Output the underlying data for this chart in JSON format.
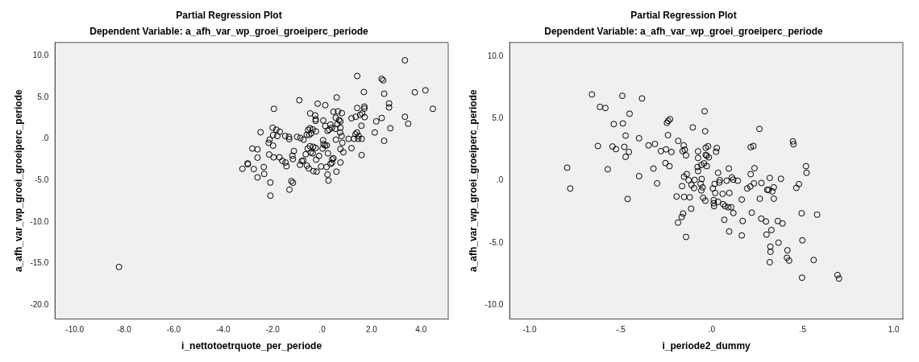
{
  "chart_data": [
    {
      "type": "scatter",
      "title": "Partial Regression Plot",
      "subtitle": "Dependent Variable: a_afh_var_wp_groei_groeiperc_periode",
      "xlabel": "i_nettotoetrquote_per_periode",
      "ylabel": "a_afh_var_wp_groei_groeiperc_periode",
      "marker": "circle",
      "color": "#000000",
      "xlim": [
        -10.8,
        5.1
      ],
      "ylim": [
        -21.7,
        11.6
      ],
      "xticks": [
        {
          "value": -10,
          "label": "-10.0"
        },
        {
          "value": -8,
          "label": "-8.0"
        },
        {
          "value": -6,
          "label": "-6.0"
        },
        {
          "value": -4,
          "label": "-4.0"
        },
        {
          "value": -2,
          "label": "-2.0"
        },
        {
          "value": 0,
          "label": ".0"
        },
        {
          "value": 2,
          "label": "2.0"
        },
        {
          "value": 4,
          "label": "4.0"
        }
      ],
      "yticks": [
        {
          "value": -20,
          "label": "-20.0"
        },
        {
          "value": -15,
          "label": "-15.0"
        },
        {
          "value": -10,
          "label": "-10.0"
        },
        {
          "value": -5,
          "label": "-5.0"
        },
        {
          "value": 0,
          "label": ".0"
        },
        {
          "value": 5,
          "label": "5.0"
        },
        {
          "value": 10,
          "label": "10.0"
        }
      ],
      "x": [
        3.35,
        1.42,
        2.41,
        2.47,
        1.69,
        3.75,
        4.18,
        2.51,
        -0.92,
        0.59,
        -0.18,
        0.13,
        2.71,
        2.71,
        1.71,
        1.71,
        1.42,
        4.48,
        -1.95,
        -0.48,
        0.46,
        0.64,
        0.8,
        -0.28,
        -0.26,
        -0.26,
        0.05,
        0.55,
        0.69,
        0.74,
        1.19,
        1.36,
        1.54,
        1.72,
        1.62,
        3.35,
        2.41,
        2.19,
        3.48,
        0.62,
        0.13,
        0.34,
        0.4,
        0.29,
        0.22,
        0.54,
        0.74,
        1.59,
        2.76,
        2.13,
        1.41,
        1.35,
        1.48,
        0.73,
        0.79,
        1.07,
        1.29,
        1.6,
        1.46,
        0.56,
        0.82,
        0.04,
        0.06,
        0.12,
        0.19,
        0.02,
        -0.56,
        -0.49,
        -0.38,
        -0.25,
        -0.52,
        -0.44,
        -0.62,
        -1.01,
        -0.88,
        -0.75,
        -1.34,
        -1.33,
        -1.49,
        -1.71,
        -1.85,
        -2.0,
        -1.81,
        -1.98,
        -2.49,
        -2.12,
        -2.16,
        -1.98,
        -2.82,
        -2.61,
        -1.14,
        -0.58,
        -0.49,
        -0.36,
        -0.26,
        -0.46,
        -0.38,
        -0.66,
        -0.12,
        0.24,
        -0.24,
        -1.2,
        -1.18,
        -2.14,
        -1.96,
        -1.72,
        -1.61,
        -1.48,
        -2.61,
        -0.82,
        -0.76,
        -0.89,
        -0.61,
        -0.54,
        -0.35,
        -0.22,
        -0.04,
        0.18,
        0.34,
        0.4,
        0.46,
        0.41,
        0.74,
        0.58,
        0.22,
        0.26,
        0.86,
        0.74,
        1.19,
        1.6,
        2.51,
        -1.44,
        -3.01,
        -3.0,
        -3.22,
        -2.76,
        -2.36,
        -2.34,
        -2.61,
        -2.09,
        -1.24,
        -1.18,
        -1.32,
        -2.09,
        -8.21
      ],
      "values": [
        9.45,
        7.56,
        7.22,
        7.04,
        5.64,
        5.6,
        5.84,
        5.43,
        4.64,
        4.98,
        4.23,
        4.05,
        4.26,
        3.78,
        3.88,
        3.64,
        3.71,
        3.61,
        3.61,
        3.06,
        3.26,
        3.3,
        3.09,
        2.82,
        2.37,
        2.16,
        2.2,
        2.54,
        2.27,
        2.1,
        2.47,
        2.65,
        2.89,
        2.61,
        3.06,
        2.65,
        2.51,
        2.1,
        1.82,
        1.79,
        1.55,
        1.72,
        1.34,
        1.1,
        0.96,
        1.2,
        1.34,
        1.58,
        1.27,
        0.76,
        0.76,
        0.55,
        0.34,
        0.76,
        0.34,
        0.0,
        0.0,
        0.0,
        0.0,
        -0.1,
        -0.48,
        -0.17,
        -0.62,
        -0.79,
        -0.79,
        -1.17,
        1.07,
        1.27,
        1.13,
        0.89,
        0.48,
        0.65,
        0.48,
        0.24,
        0.1,
        -0.1,
        0.24,
        -0.03,
        0.34,
        0.86,
        1.1,
        1.34,
        0.34,
        0.45,
        0.79,
        -0.1,
        -0.48,
        -0.82,
        -1.17,
        -1.27,
        -1.48,
        -1.17,
        -0.89,
        -0.96,
        -1.1,
        -1.65,
        -1.75,
        -1.86,
        -2.06,
        -1.75,
        -2.51,
        -2.03,
        -2.44,
        -1.89,
        -2.23,
        -2.23,
        -2.65,
        -2.85,
        -2.27,
        -2.68,
        -2.61,
        -3.13,
        -3.23,
        -3.57,
        -3.88,
        -3.95,
        -3.33,
        -3.4,
        -3.02,
        -2.89,
        -2.34,
        -2.47,
        -2.85,
        -3.95,
        -4.3,
        -5.02,
        -1.62,
        -1.24,
        -1.13,
        -1.96,
        -0.24,
        -3.3,
        -2.96,
        -3.06,
        -3.61,
        -3.64,
        -3.4,
        -4.23,
        -4.64,
        -5.26,
        -5.09,
        -5.29,
        -6.12,
        -6.84,
        -15.43
      ]
    },
    {
      "type": "scatter",
      "title": "Partial Regression Plot",
      "subtitle": "Dependent Variable: a_afh_var_wp_groei_groeiperc_periode",
      "xlabel": "i_periode2_dummy",
      "ylabel": "a_afh_var_wp_groei_groeiperc_periode",
      "marker": "circle",
      "color": "#000000",
      "xlim": [
        -1.11,
        1.05
      ],
      "ylim": [
        -11.1,
        11.1
      ],
      "xticks": [
        {
          "value": -1,
          "label": "-1.0"
        },
        {
          "value": -0.5,
          "label": "-.5"
        },
        {
          "value": 0,
          "label": ".0"
        },
        {
          "value": 0.5,
          "label": ".5"
        },
        {
          "value": 1,
          "label": "1.0"
        }
      ],
      "yticks": [
        {
          "value": -10,
          "label": "-10.0"
        },
        {
          "value": -5,
          "label": "-5.0"
        },
        {
          "value": 0,
          "label": ".0"
        },
        {
          "value": 5,
          "label": "5.0"
        },
        {
          "value": 10,
          "label": "10.0"
        }
      ],
      "x": [
        -0.658,
        -0.491,
        -0.383,
        -0.614,
        -0.584,
        -0.451,
        -0.538,
        -0.488,
        -0.246,
        -0.239,
        -0.229,
        -0.039,
        -0.104,
        -0.036,
        0.262,
        -0.473,
        -0.399,
        -0.24,
        -0.184,
        -0.625,
        -0.545,
        -0.526,
        -0.48,
        -0.455,
        -0.473,
        -0.347,
        -0.312,
        -0.279,
        -0.251,
        -0.221,
        -0.154,
        -0.148,
        -0.16,
        -0.141,
        -0.075,
        -0.075,
        -0.033,
        -0.02,
        -0.033,
        -0.027,
        -0.016,
        0.028,
        0.024,
        0.214,
        0.229,
        0.446,
        0.449,
        -0.794,
        -0.777,
        -0.571,
        -0.32,
        -0.254,
        -0.232,
        -0.399,
        -0.3,
        -0.462,
        -0.078,
        -0.057,
        -0.042,
        -0.027,
        -0.075,
        -0.137,
        -0.152,
        -0.127,
        -0.094,
        -0.055,
        -0.111,
        -0.097,
        -0.163,
        -0.061,
        -0.05,
        -0.057,
        0.006,
        0.016,
        0.019,
        0.035,
        0.044,
        0.042,
        0.094,
        0.082,
        0.111,
        0.118,
        0.143,
        0.06,
        0.097,
        0.214,
        0.235,
        0.195,
        0.212,
        0.232,
        0.273,
        0.319,
        0.38,
        0.305,
        0.312,
        0.333,
        0.341,
        0.465,
        0.479,
        0.518,
        0.521,
        -0.193,
        -0.152,
        -0.121,
        -0.047,
        -0.035,
        0.011,
        0.035,
        0.011,
        0.013,
        0.063,
        0.074,
        0.091,
        0.107,
        0.119,
        0.165,
        0.264,
        0.341,
        0.22,
        0.494,
        0.579,
        -0.113,
        -0.157,
        -0.165,
        -0.185,
        0.069,
        0.17,
        0.272,
        0.298,
        0.363,
        0.389,
        0.096,
        0.165,
        -0.141,
        0.301,
        0.328,
        0.367,
        0.498,
        0.322,
        0.323,
        0.416,
        0.413,
        0.425,
        0.56,
        0.319,
        0.496,
        0.691,
        0.699
      ],
      "values": [
        6.93,
        6.82,
        6.61,
        5.93,
        5.84,
        5.38,
        4.55,
        4.6,
        4.65,
        4.81,
        4.94,
        5.58,
        4.28,
        3.98,
        4.16,
        3.62,
        3.41,
        3.66,
        3.2,
        2.79,
        2.75,
        2.54,
        2.72,
        2.31,
        1.92,
        2.84,
        2.95,
        2.38,
        2.52,
        2.31,
        2.84,
        2.49,
        2.38,
        2.04,
        2.36,
        1.83,
        2.65,
        2.77,
        2.08,
        2.01,
        1.88,
        2.63,
        2.33,
        2.7,
        2.79,
        3.16,
        2.93,
        1.05,
        -0.62,
        0.92,
        0.98,
        1.42,
        1.17,
        0.37,
        -0.21,
        -1.46,
        1.1,
        1.26,
        1.4,
        1.17,
        0.78,
        0.53,
        0.32,
        0.05,
        0.07,
        0.14,
        -0.34,
        -0.59,
        -0.43,
        -0.25,
        -0.53,
        -0.78,
        -0.62,
        -0.25,
        -0.98,
        0.64,
        0.05,
        -0.14,
        0.98,
        0.0,
        0.27,
        0.09,
        0.0,
        -1.05,
        -0.98,
        0.53,
        1.01,
        -0.62,
        -0.46,
        -0.21,
        -0.18,
        0.23,
        0.16,
        -0.73,
        -0.73,
        -0.85,
        -0.53,
        -0.57,
        -0.27,
        1.17,
        0.64,
        -1.26,
        -1.3,
        -1.33,
        -1.37,
        -1.6,
        -1.56,
        -1.69,
        -1.81,
        -2.04,
        -1.88,
        -2.04,
        -2.13,
        -2.13,
        -2.59,
        -1.51,
        -1.44,
        -1.44,
        -2.56,
        -2.61,
        -2.72,
        -2.24,
        -2.63,
        -2.91,
        -3.36,
        -3.13,
        -3.23,
        -3.04,
        -3.27,
        -3.23,
        -3.43,
        -4.07,
        -4.39,
        -4.51,
        -4.32,
        -3.96,
        -4.97,
        -4.78,
        -5.29,
        -5.7,
        -5.58,
        -6.18,
        -6.41,
        -6.36,
        -6.54,
        -7.78,
        -7.57,
        -7.85
      ]
    }
  ]
}
